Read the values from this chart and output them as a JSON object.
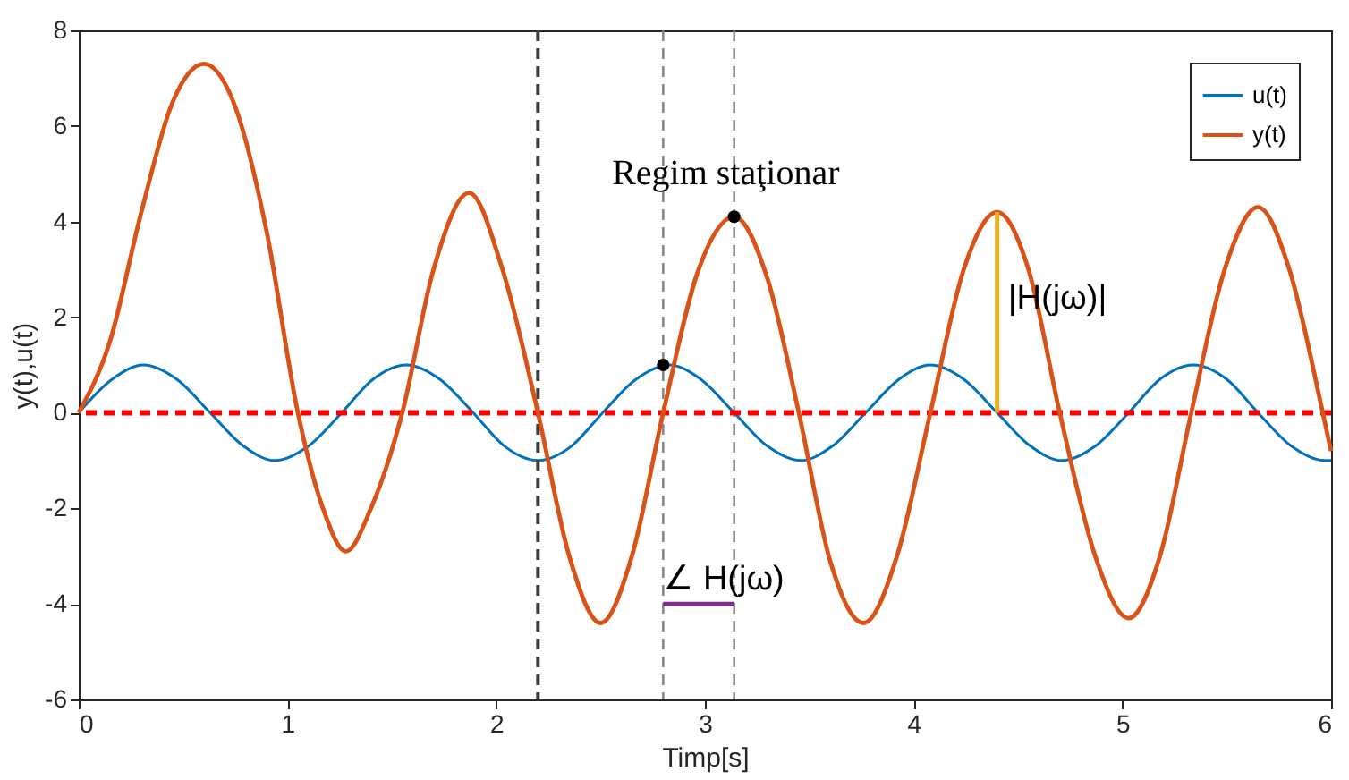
{
  "chart_data": {
    "type": "line",
    "xlabel": "Timp[s]",
    "ylabel": "y(t),u(t)",
    "xlim": [
      0,
      6
    ],
    "xticks": [
      0,
      1,
      2,
      3,
      4,
      5,
      6
    ],
    "ylim": [
      -6,
      8
    ],
    "yticks": [
      -6,
      -4,
      -2,
      0,
      2,
      4,
      6,
      8
    ],
    "grid": false,
    "legend": "top right",
    "line_style": "solid",
    "marker": "none",
    "series": [
      {
        "name": "u(t)",
        "color": "#0072bd",
        "x": [
          0,
          0.16,
          0.31,
          0.47,
          0.63,
          0.79,
          0.94,
          1.1,
          1.26,
          1.41,
          1.57,
          1.73,
          1.89,
          2.04,
          2.2,
          2.36,
          2.51,
          2.67,
          2.83,
          2.98,
          3.14,
          3.3,
          3.46,
          3.61,
          3.77,
          3.93,
          4.08,
          4.24,
          4.4,
          4.56,
          4.71,
          4.87,
          5.03,
          5.18,
          5.34,
          5.5,
          5.65,
          5.81,
          5.97,
          6
        ],
        "values": [
          0,
          0.7,
          1,
          0.7,
          0,
          -0.7,
          -1,
          -0.7,
          0,
          0.7,
          1,
          0.7,
          0,
          -0.7,
          -1,
          -0.7,
          0,
          0.7,
          1,
          0.7,
          0,
          -0.7,
          -1,
          -0.7,
          0,
          0.7,
          1,
          0.7,
          0,
          -0.7,
          -1,
          -0.7,
          0,
          0.7,
          1,
          0.7,
          0,
          -0.7,
          -1,
          -1
        ]
      },
      {
        "name": "y(t)",
        "color": "#d95319",
        "x": [
          0,
          0.15,
          0.3,
          0.45,
          0.6,
          0.75,
          0.9,
          1.05,
          1.17,
          1.28,
          1.4,
          1.55,
          1.7,
          1.87,
          2.03,
          2.2,
          2.35,
          2.5,
          2.65,
          2.8,
          2.97,
          3.14,
          3.3,
          3.45,
          3.6,
          3.76,
          3.92,
          4.08,
          4.24,
          4.4,
          4.55,
          4.7,
          4.87,
          5.03,
          5.18,
          5.33,
          5.49,
          5.65,
          5.8,
          5.96,
          6
        ],
        "values": [
          0,
          1.5,
          4.2,
          6.5,
          7.3,
          6.4,
          3.8,
          0,
          -2.0,
          -2.9,
          -2.0,
          0,
          3.0,
          4.6,
          3.0,
          0,
          -3.0,
          -4.4,
          -3.0,
          0,
          3.0,
          4.1,
          2.8,
          0,
          -3.1,
          -4.4,
          -3.0,
          0,
          3.0,
          4.2,
          3.0,
          0,
          -3.0,
          -4.3,
          -3.0,
          0,
          3.0,
          4.3,
          3.0,
          0,
          -0.8
        ]
      },
      {
        "color": "#000000",
        "type": "scatter",
        "marker": "circle",
        "x": [
          2.8,
          3.14
        ],
        "values": [
          1,
          4.1
        ]
      },
      {
        "color": "#edb120",
        "type": "line",
        "x": [
          4.4,
          4.4
        ],
        "values": [
          0,
          4.2
        ]
      },
      {
        "color": "#7e2f8e",
        "type": "line",
        "x": [
          2.8,
          3.14
        ],
        "values": [
          -4,
          -4
        ]
      }
    ],
    "ref_lines": [
      {
        "axis": "x",
        "value": 2.2,
        "color": "#404040",
        "line_style": "dashed"
      },
      {
        "axis": "x",
        "value": 2.8,
        "color": "#808080",
        "line_style": "dashed"
      },
      {
        "axis": "x",
        "value": 3.14,
        "color": "#808080",
        "line_style": "dashed"
      },
      {
        "axis": "y",
        "value": 0,
        "color": "#ff0000",
        "line_style": "dashed"
      }
    ],
    "annotations": [
      {
        "text": "Regim staţionar",
        "x": 3.1,
        "y": 5
      },
      {
        "text": "|H(jω)|",
        "x": 4.4,
        "y": 2.4
      },
      {
        "text": "∠ H(jω)",
        "x": 2.8,
        "y": -4
      }
    ]
  }
}
